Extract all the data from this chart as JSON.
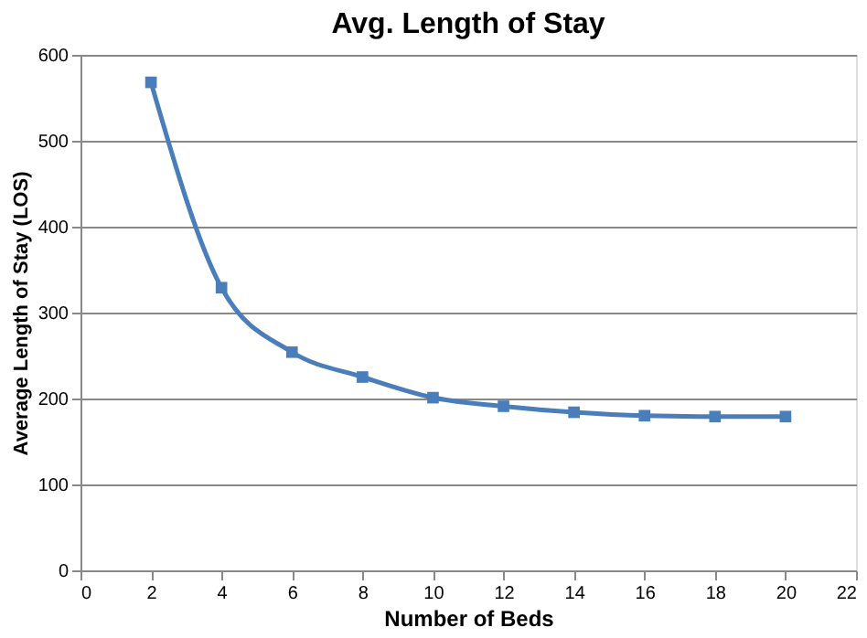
{
  "chart_data": {
    "type": "line",
    "title": "Avg. Length of Stay",
    "xlabel": "Number of Beds",
    "ylabel": "Average Length of Stay (LOS)",
    "x": [
      2,
      4,
      6,
      8,
      10,
      12,
      14,
      16,
      18,
      20
    ],
    "series": [
      {
        "color": "#4a7ebb",
        "values": [
          568,
          329,
          254,
          225,
          201,
          191,
          184,
          180,
          179,
          179
        ]
      }
    ],
    "xlim": [
      0,
      22
    ],
    "xticks": [
      0,
      2,
      4,
      6,
      8,
      10,
      12,
      14,
      16,
      18,
      20,
      22
    ],
    "ylim": [
      0,
      600
    ],
    "yticks": [
      0,
      100,
      200,
      300,
      400,
      500,
      600
    ],
    "grid": "y",
    "marker": "square",
    "line_style": "solid"
  }
}
